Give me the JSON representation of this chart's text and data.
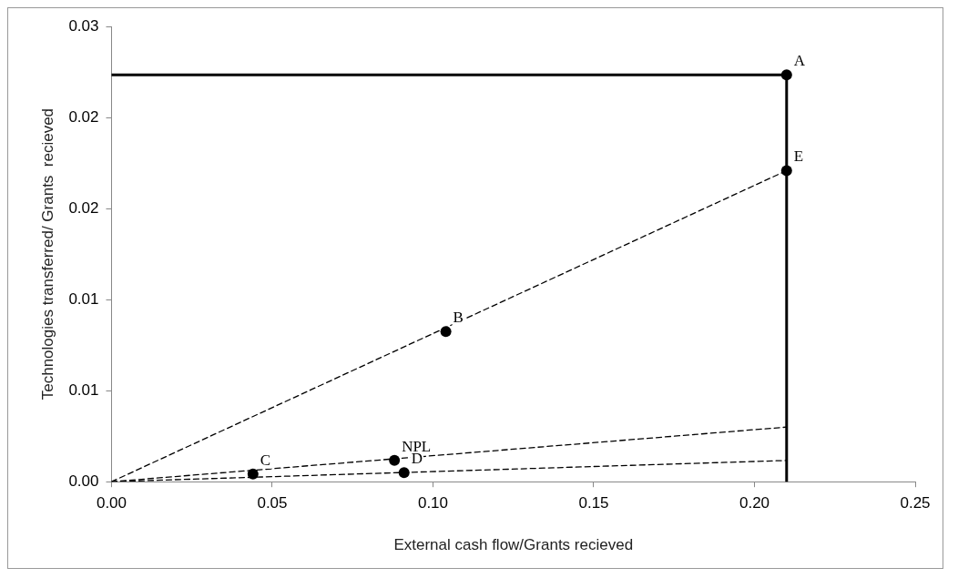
{
  "chart_data": {
    "type": "line",
    "xlabel": "External cash flow/Grants recieved",
    "ylabel": "Technologies transferred/ Grants  recieved",
    "xlim": [
      0,
      0.25
    ],
    "xticks": [
      {
        "value": 0,
        "label": "0.00"
      },
      {
        "value": 0.05,
        "label": "0.05"
      },
      {
        "value": 0.1,
        "label": "0.10"
      },
      {
        "value": 0.15,
        "label": "0.15"
      },
      {
        "value": 0.2,
        "label": "0.20"
      },
      {
        "value": 0.25,
        "label": "0.25"
      }
    ],
    "ylim": [
      0,
      0.03
    ],
    "yticks": [
      {
        "value": 0,
        "label": "0.00"
      },
      {
        "value": 0.006,
        "label": "0.01"
      },
      {
        "value": 0.012,
        "label": "0.01"
      },
      {
        "value": 0.018,
        "label": "0.02"
      },
      {
        "value": 0.024,
        "label": "0.02"
      },
      {
        "value": 0.03,
        "label": "0.03"
      }
    ],
    "grid": false,
    "legend": false,
    "series": [
      {
        "color": "#000000",
        "line_style": "solid",
        "marker": "none",
        "x": [
          0,
          0.21
        ],
        "values": [
          0.0268,
          0.0268
        ]
      },
      {
        "color": "#000000",
        "line_style": "solid",
        "marker": "none",
        "x": [
          0.21,
          0.21
        ],
        "values": [
          0,
          0.0268
        ]
      },
      {
        "color": "#000000",
        "line_style": "dashed",
        "marker": "none",
        "x": [
          0,
          0.21
        ],
        "values": [
          0,
          0.0205
        ]
      },
      {
        "color": "#000000",
        "line_style": "dashed",
        "marker": "none",
        "x": [
          0,
          0.21
        ],
        "values": [
          0,
          0.0036
        ]
      },
      {
        "color": "#000000",
        "line_style": "dashed",
        "marker": "none",
        "x": [
          0,
          0.21
        ],
        "values": [
          0,
          0.0014
        ]
      },
      {
        "type": "scatter",
        "color": "#000000",
        "marker": "circle",
        "x": [
          0.21,
          0.21,
          0.104,
          0.088,
          0.091,
          0.044
        ],
        "values": [
          0.0268,
          0.0205,
          0.0099,
          0.0014,
          0.0006,
          0.0005
        ]
      }
    ],
    "annotations": [
      {
        "text": "A",
        "x": 0.21,
        "y": 0.0268
      },
      {
        "text": "E",
        "x": 0.21,
        "y": 0.0205
      },
      {
        "text": "B",
        "x": 0.104,
        "y": 0.0099
      },
      {
        "text": "NPL",
        "x": 0.088,
        "y": 0.0014
      },
      {
        "text": "D",
        "x": 0.091,
        "y": 0.0006
      },
      {
        "text": "C",
        "x": 0.044,
        "y": 0.0005
      }
    ]
  }
}
